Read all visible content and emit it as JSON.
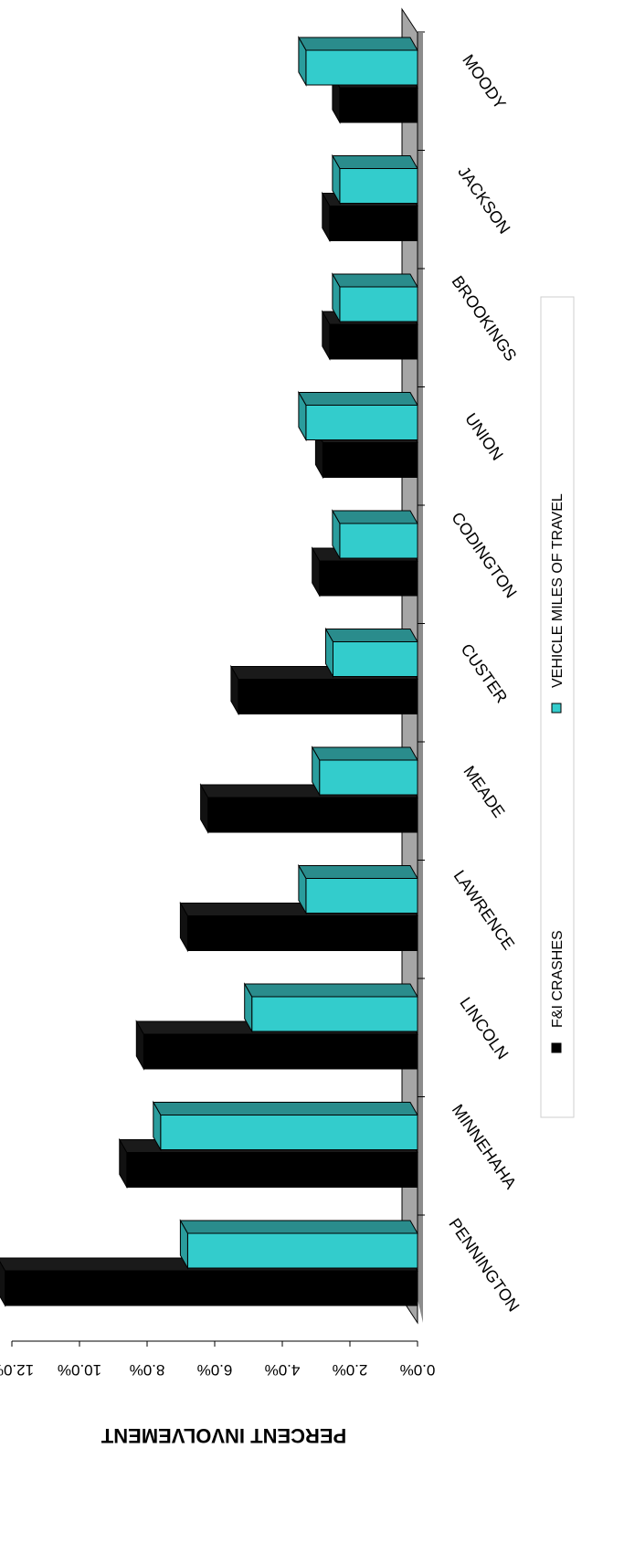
{
  "chart_data": {
    "type": "bar",
    "orientation": "horizontal-3d",
    "title": "",
    "ylabel": "PERCENT INVOLVEMENT",
    "xlabel": "",
    "ylim": [
      0,
      12
    ],
    "y_ticks": [
      "0.0%",
      "2.0%",
      "4.0%",
      "6.0%",
      "8.0%",
      "10.0%",
      "12.0%"
    ],
    "categories": [
      "PENNINGTON",
      "MINNEHAHA",
      "LINCOLN",
      "LAWRENCE",
      "MEADE",
      "CUSTER",
      "CODINGTON",
      "UNION",
      "BROOKINGS",
      "JACKSON",
      "MOODY"
    ],
    "series": [
      {
        "name": "F&I CRASHES",
        "color": "#000000",
        "values": [
          12.2,
          8.6,
          8.1,
          6.8,
          6.2,
          5.3,
          2.9,
          2.8,
          2.6,
          2.6,
          2.3
        ]
      },
      {
        "name": "VEHICLE MILES OF TRAVEL",
        "color": "#33cccc",
        "values": [
          6.8,
          7.6,
          4.9,
          3.3,
          2.9,
          2.5,
          2.3,
          3.3,
          2.3,
          2.3,
          3.3
        ]
      }
    ],
    "legend": {
      "position": "right",
      "items": [
        "F&I CRASHES",
        "VEHICLE MILES OF TRAVEL"
      ]
    },
    "grid": false,
    "colors": {
      "floor": "#a6a6a6",
      "cyan_top": "#2a8c8c",
      "black_top": "#1a1a1a"
    }
  }
}
